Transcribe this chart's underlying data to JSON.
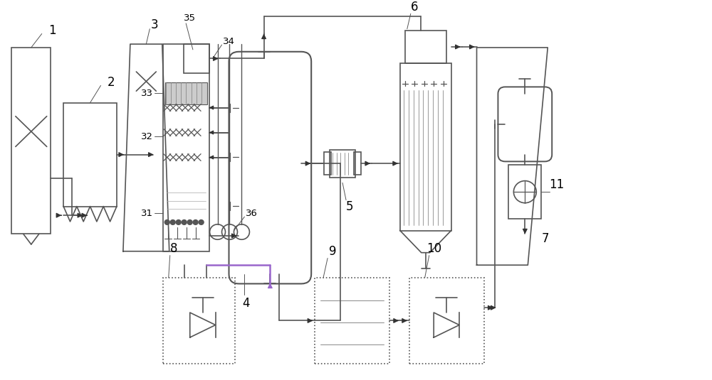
{
  "bg_color": "#ffffff",
  "lc": "#555555",
  "lw": 1.2,
  "purple": "#9966cc"
}
